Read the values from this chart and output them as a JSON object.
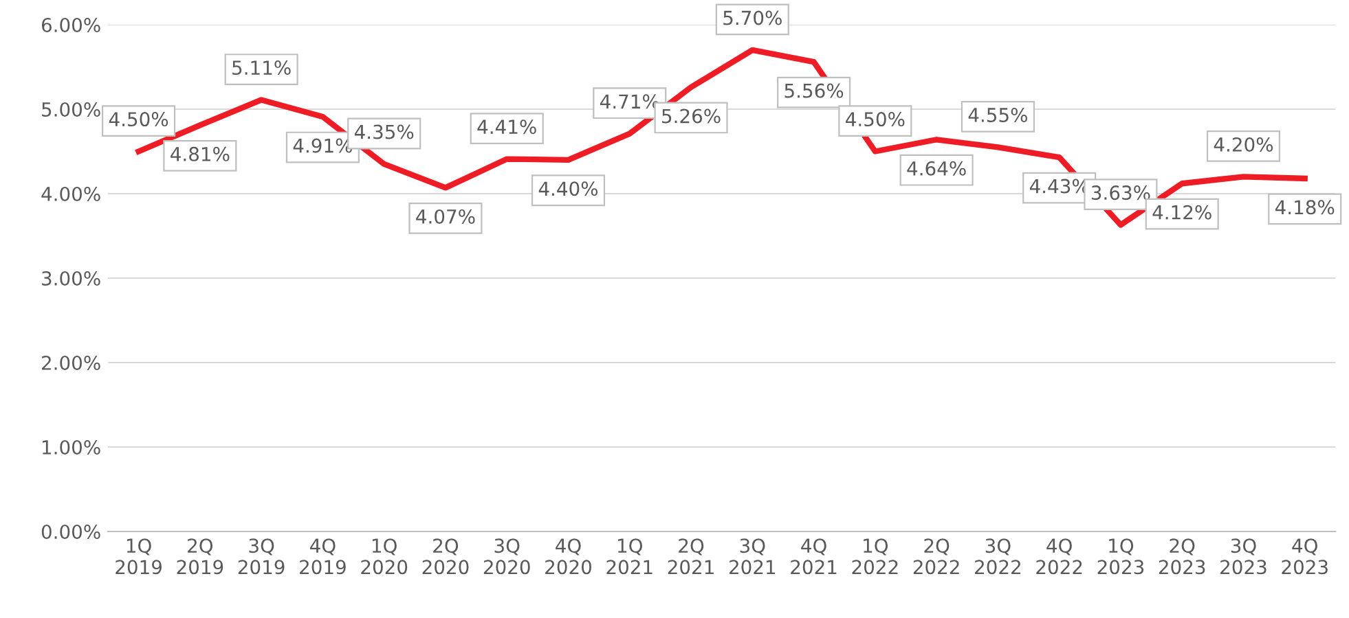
{
  "chart_data": {
    "type": "line",
    "categories": [
      "1Q\n2019",
      "2Q\n2019",
      "3Q\n2019",
      "4Q\n2019",
      "1Q\n2020",
      "2Q\n2020",
      "3Q\n2020",
      "4Q\n2020",
      "1Q\n2021",
      "2Q\n2021",
      "3Q\n2021",
      "4Q\n2021",
      "1Q\n2022",
      "2Q\n2022",
      "3Q\n2022",
      "4Q\n2022",
      "1Q\n2023",
      "2Q\n2023",
      "3Q\n2023",
      "4Q\n2023"
    ],
    "series": [
      {
        "color": "#ee1c25",
        "values": [
          4.5,
          4.81,
          5.11,
          4.91,
          4.35,
          4.07,
          4.41,
          4.4,
          4.71,
          5.26,
          5.7,
          5.56,
          4.5,
          4.64,
          4.55,
          4.43,
          3.63,
          4.12,
          4.2,
          4.18
        ],
        "value_labels": [
          "4.50%",
          "4.81%",
          "5.11%",
          "4.91%",
          "4.35%",
          "4.07%",
          "4.41%",
          "4.40%",
          "4.71%",
          "5.26%",
          "5.70%",
          "5.56%",
          "4.50%",
          "4.64%",
          "4.55%",
          "4.43%",
          "3.63%",
          "4.12%",
          "4.20%",
          "4.18%"
        ]
      }
    ],
    "ylim": [
      0,
      6
    ],
    "yticks": [
      {
        "value": 0,
        "label": "0.00%"
      },
      {
        "value": 1,
        "label": "1.00%"
      },
      {
        "value": 2,
        "label": "2.00%"
      },
      {
        "value": 3,
        "label": "3.00%"
      },
      {
        "value": 4,
        "label": "4.00%"
      },
      {
        "value": 5,
        "label": "5.00%"
      },
      {
        "value": 6,
        "label": "6.00%"
      }
    ],
    "grid": "y",
    "marker": "none",
    "line_style": "solid"
  }
}
